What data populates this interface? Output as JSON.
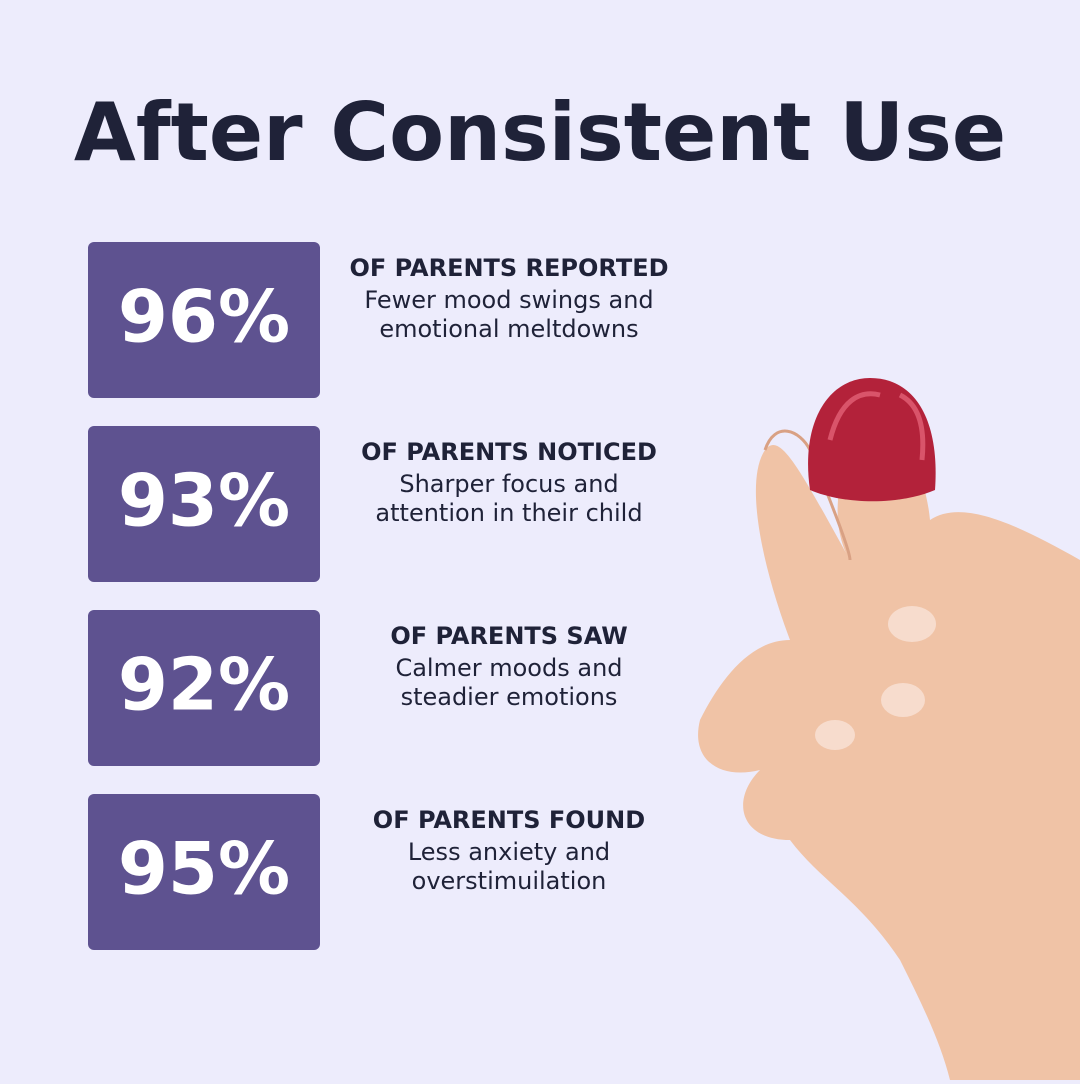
{
  "title": "After Consistent Use",
  "stats": [
    {
      "value": "96%",
      "heading": "OF PARENTS REPORTED",
      "lines": [
        "Fewer mood swings and",
        "emotional meltdowns"
      ]
    },
    {
      "value": "93%",
      "heading": "OF PARENTS NOTICED",
      "lines": [
        "Sharper focus and",
        "attention in their child"
      ]
    },
    {
      "value": "92%",
      "heading": "OF PARENTS SAW",
      "lines": [
        "Calmer moods and",
        "steadier emotions"
      ]
    },
    {
      "value": "95%",
      "heading": "OF PARENTS FOUND",
      "lines": [
        "Less anxiety and",
        "overstimuilation"
      ]
    }
  ]
}
